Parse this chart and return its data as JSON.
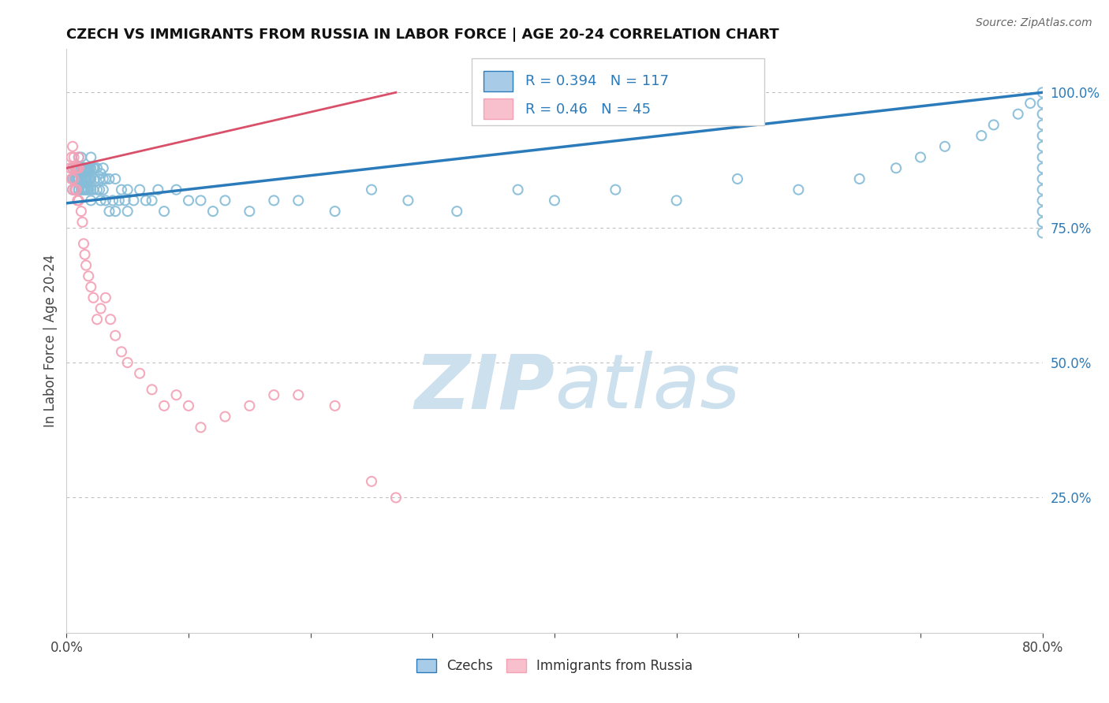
{
  "title": "CZECH VS IMMIGRANTS FROM RUSSIA IN LABOR FORCE | AGE 20-24 CORRELATION CHART",
  "source_text": "Source: ZipAtlas.com",
  "ylabel": "In Labor Force | Age 20-24",
  "xlim": [
    0.0,
    0.8
  ],
  "ylim": [
    0.0,
    1.08
  ],
  "R_czech": 0.394,
  "N_czech": 117,
  "R_russia": 0.46,
  "N_russia": 45,
  "blue_dot_color": "#85bcd8",
  "pink_dot_color": "#f4a0b5",
  "blue_line_color": "#2b7bba",
  "pink_line_color": "#d9506a",
  "legend_text_color": "#2b7bba",
  "y_tick_color": "#2b7bba",
  "watermark_color": "#cce0ee",
  "grid_color": "#bbbbbb",
  "dot_size": 75,
  "blue_trend_x0": 0.0,
  "blue_trend_y0": 0.795,
  "blue_trend_x1": 0.8,
  "blue_trend_y1": 1.0,
  "pink_trend_x0": 0.0,
  "pink_trend_y0": 0.86,
  "pink_trend_x1": 0.27,
  "pink_trend_y1": 1.0,
  "czechs_x": [
    0.005,
    0.005,
    0.005,
    0.007,
    0.007,
    0.007,
    0.008,
    0.008,
    0.009,
    0.009,
    0.01,
    0.01,
    0.01,
    0.01,
    0.01,
    0.01,
    0.01,
    0.012,
    0.012,
    0.012,
    0.012,
    0.013,
    0.013,
    0.013,
    0.014,
    0.014,
    0.014,
    0.015,
    0.015,
    0.015,
    0.016,
    0.016,
    0.016,
    0.017,
    0.017,
    0.017,
    0.018,
    0.018,
    0.018,
    0.019,
    0.019,
    0.02,
    0.02,
    0.02,
    0.02,
    0.02,
    0.022,
    0.022,
    0.023,
    0.023,
    0.025,
    0.025,
    0.027,
    0.027,
    0.028,
    0.028,
    0.03,
    0.03,
    0.03,
    0.032,
    0.032,
    0.035,
    0.035,
    0.038,
    0.04,
    0.04,
    0.043,
    0.045,
    0.048,
    0.05,
    0.05,
    0.055,
    0.06,
    0.065,
    0.07,
    0.075,
    0.08,
    0.09,
    0.1,
    0.11,
    0.12,
    0.13,
    0.15,
    0.17,
    0.19,
    0.22,
    0.25,
    0.28,
    0.32,
    0.37,
    0.4,
    0.45,
    0.5,
    0.55,
    0.6,
    0.65,
    0.68,
    0.7,
    0.72,
    0.75,
    0.76,
    0.78,
    0.79,
    0.8,
    0.8,
    0.8,
    0.8,
    0.8,
    0.8,
    0.8,
    0.8,
    0.8,
    0.8,
    0.8,
    0.8,
    0.8,
    0.8
  ],
  "czechs_y": [
    0.82,
    0.84,
    0.86,
    0.82,
    0.84,
    0.86,
    0.84,
    0.86,
    0.84,
    0.86,
    0.82,
    0.82,
    0.84,
    0.84,
    0.86,
    0.86,
    0.88,
    0.82,
    0.84,
    0.86,
    0.88,
    0.82,
    0.84,
    0.86,
    0.82,
    0.84,
    0.86,
    0.82,
    0.84,
    0.86,
    0.82,
    0.84,
    0.86,
    0.82,
    0.84,
    0.86,
    0.82,
    0.84,
    0.86,
    0.84,
    0.86,
    0.8,
    0.82,
    0.84,
    0.86,
    0.88,
    0.82,
    0.86,
    0.84,
    0.86,
    0.82,
    0.86,
    0.82,
    0.84,
    0.8,
    0.85,
    0.82,
    0.84,
    0.86,
    0.8,
    0.84,
    0.78,
    0.84,
    0.8,
    0.78,
    0.84,
    0.8,
    0.82,
    0.8,
    0.78,
    0.82,
    0.8,
    0.82,
    0.8,
    0.8,
    0.82,
    0.78,
    0.82,
    0.8,
    0.8,
    0.78,
    0.8,
    0.78,
    0.8,
    0.8,
    0.78,
    0.82,
    0.8,
    0.78,
    0.82,
    0.8,
    0.82,
    0.8,
    0.84,
    0.82,
    0.84,
    0.86,
    0.88,
    0.9,
    0.92,
    0.94,
    0.96,
    0.98,
    1.0,
    0.98,
    0.96,
    0.94,
    0.92,
    0.9,
    0.88,
    0.86,
    0.84,
    0.82,
    0.8,
    0.78,
    0.76,
    0.74
  ],
  "russia_x": [
    0.003,
    0.004,
    0.004,
    0.005,
    0.005,
    0.005,
    0.006,
    0.006,
    0.007,
    0.007,
    0.008,
    0.008,
    0.009,
    0.009,
    0.01,
    0.01,
    0.01,
    0.012,
    0.013,
    0.014,
    0.015,
    0.016,
    0.018,
    0.02,
    0.022,
    0.025,
    0.028,
    0.032,
    0.036,
    0.04,
    0.045,
    0.05,
    0.06,
    0.07,
    0.08,
    0.09,
    0.1,
    0.11,
    0.13,
    0.15,
    0.17,
    0.19,
    0.22,
    0.25,
    0.27
  ],
  "russia_y": [
    0.86,
    0.84,
    0.88,
    0.82,
    0.86,
    0.9,
    0.84,
    0.88,
    0.82,
    0.86,
    0.82,
    0.86,
    0.8,
    0.86,
    0.8,
    0.86,
    0.88,
    0.78,
    0.76,
    0.72,
    0.7,
    0.68,
    0.66,
    0.64,
    0.62,
    0.58,
    0.6,
    0.62,
    0.58,
    0.55,
    0.52,
    0.5,
    0.48,
    0.45,
    0.42,
    0.44,
    0.42,
    0.38,
    0.4,
    0.42,
    0.44,
    0.44,
    0.42,
    0.28,
    0.25
  ]
}
